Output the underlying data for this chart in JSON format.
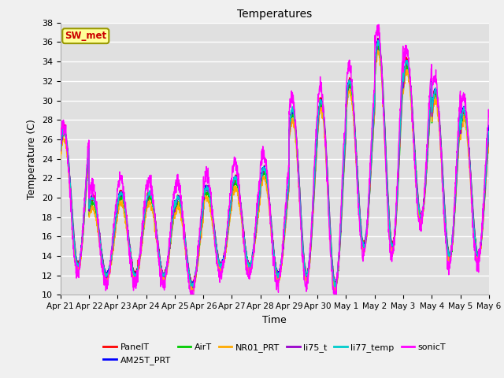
{
  "title": "Temperatures",
  "xlabel": "Time",
  "ylabel": "Temperature (C)",
  "ylim": [
    10,
    38
  ],
  "yticks": [
    10,
    12,
    14,
    16,
    18,
    20,
    22,
    24,
    26,
    28,
    30,
    32,
    34,
    36,
    38
  ],
  "xtick_labels": [
    "Apr 21",
    "Apr 22",
    "Apr 23",
    "Apr 24",
    "Apr 25",
    "Apr 26",
    "Apr 27",
    "Apr 28",
    "Apr 29",
    "Apr 30",
    "May 1",
    "May 2",
    "May 3",
    "May 4",
    "May 5",
    "May 6"
  ],
  "series_names": [
    "PanelT",
    "AM25T_PRT",
    "AirT",
    "NR01_PRT",
    "li75_t",
    "li77_temp",
    "sonicT"
  ],
  "series_colors": [
    "#ff0000",
    "#0000ff",
    "#00cc00",
    "#ffaa00",
    "#9900cc",
    "#00cccc",
    "#ff00ff"
  ],
  "annotation_text": "SW_met",
  "annotation_color": "#cc0000",
  "annotation_bg": "#ffff99",
  "annotation_border": "#999900",
  "background_color": "#e0e0e0",
  "grid_color": "#ffffff",
  "fig_bg_color": "#f0f0f0",
  "n_per_day": 144,
  "n_days": 15,
  "day_peaks": [
    27,
    20,
    20.5,
    20.5,
    20,
    21,
    22,
    23,
    29,
    30,
    32,
    36,
    34,
    31,
    29
  ],
  "day_mins": [
    13,
    12,
    12,
    12,
    11,
    13,
    13,
    12,
    12,
    11,
    15,
    15,
    18,
    14,
    14
  ]
}
